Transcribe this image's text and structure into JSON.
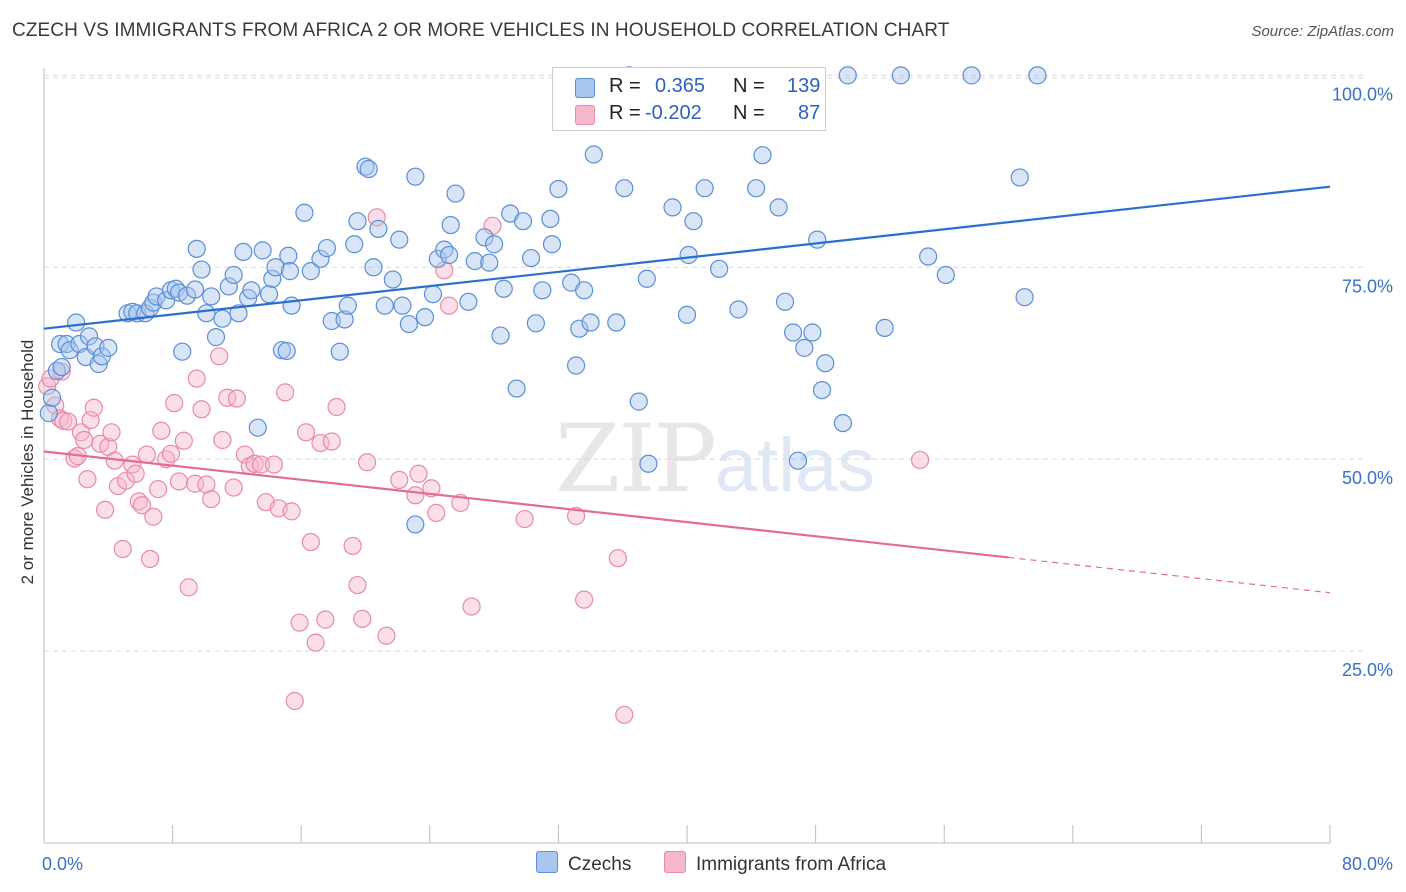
{
  "title": "CZECH VS IMMIGRANTS FROM AFRICA 2 OR MORE VEHICLES IN HOUSEHOLD CORRELATION CHART",
  "source": "Source: ZipAtlas.com",
  "watermark": {
    "zip": "ZIP",
    "atlas": "atlas"
  },
  "legend": {
    "rows": [
      {
        "r_label": "R =",
        "r_value": "0.365",
        "n_label": "N =",
        "n_value": "139"
      },
      {
        "r_label": "R =",
        "r_value": "-0.202",
        "n_label": "N =",
        "n_value": "87"
      }
    ]
  },
  "bottom_legend": [
    "Czechs",
    "Immigrants from Africa"
  ],
  "colors": {
    "blue_fill": "#a9c6ee",
    "blue_stroke": "#5b8ed6",
    "blue_line": "#2a6fd0",
    "pink_fill": "#f6b8cb",
    "pink_stroke": "#e88aa8",
    "pink_line": "#e36b96",
    "tick_label": "#3b6fc9",
    "grid": "#d9d9d9"
  },
  "chart_data": {
    "type": "scatter",
    "title": "CZECH VS IMMIGRANTS FROM AFRICA 2 OR MORE VEHICLES IN HOUSEHOLD CORRELATION CHART",
    "xlabel": "",
    "ylabel": "2 or more Vehicles in Household",
    "xlim": [
      0,
      80
    ],
    "ylim": [
      0,
      102
    ],
    "x_tick_labels": [
      "0.0%",
      "80.0%"
    ],
    "y_ticks": [
      25,
      50,
      75,
      100
    ],
    "y_tick_labels": [
      "25.0%",
      "50.0%",
      "75.0%",
      "100.0%"
    ],
    "grid": true,
    "legend_position": "top-center",
    "series": [
      {
        "name": "Czechs",
        "r": 0.365,
        "n": 139,
        "trend": {
          "x": [
            0,
            80
          ],
          "y": [
            67.0,
            85.5
          ],
          "dashed_from": null
        },
        "points": [
          [
            0.3,
            56.0
          ],
          [
            0.5,
            58.0
          ],
          [
            0.8,
            61.5
          ],
          [
            1.0,
            65.0
          ],
          [
            1.1,
            62.0
          ],
          [
            1.4,
            65.0
          ],
          [
            1.6,
            64.2
          ],
          [
            2.0,
            67.8
          ],
          [
            2.2,
            65.0
          ],
          [
            2.6,
            63.3
          ],
          [
            2.8,
            66.0
          ],
          [
            3.2,
            64.7
          ],
          [
            3.4,
            62.4
          ],
          [
            3.6,
            63.4
          ],
          [
            4.0,
            64.5
          ],
          [
            5.2,
            69.0
          ],
          [
            5.5,
            69.2
          ],
          [
            5.8,
            69.0
          ],
          [
            6.3,
            69.0
          ],
          [
            6.6,
            69.7
          ],
          [
            6.8,
            70.4
          ],
          [
            7.0,
            71.2
          ],
          [
            7.6,
            70.7
          ],
          [
            7.9,
            72.0
          ],
          [
            8.2,
            72.2
          ],
          [
            8.4,
            71.7
          ],
          [
            8.6,
            64.0
          ],
          [
            8.9,
            71.3
          ],
          [
            9.4,
            72.1
          ],
          [
            9.5,
            77.4
          ],
          [
            9.8,
            74.7
          ],
          [
            10.1,
            69.0
          ],
          [
            10.4,
            71.2
          ],
          [
            10.7,
            65.9
          ],
          [
            11.1,
            68.3
          ],
          [
            11.5,
            72.5
          ],
          [
            11.8,
            74.0
          ],
          [
            12.1,
            69.0
          ],
          [
            12.4,
            77.0
          ],
          [
            12.7,
            71.0
          ],
          [
            12.9,
            72.0
          ],
          [
            13.3,
            54.1
          ],
          [
            13.6,
            77.2
          ],
          [
            14.0,
            71.5
          ],
          [
            14.2,
            73.5
          ],
          [
            14.4,
            75.0
          ],
          [
            14.8,
            64.2
          ],
          [
            15.1,
            64.1
          ],
          [
            15.2,
            76.5
          ],
          [
            15.3,
            74.5
          ],
          [
            15.4,
            70.0
          ],
          [
            16.2,
            82.1
          ],
          [
            16.6,
            74.5
          ],
          [
            17.2,
            76.1
          ],
          [
            17.6,
            77.5
          ],
          [
            17.9,
            68.0
          ],
          [
            18.4,
            64.0
          ],
          [
            18.7,
            68.2
          ],
          [
            18.9,
            70.0
          ],
          [
            19.3,
            78.0
          ],
          [
            19.5,
            81.0
          ],
          [
            20.0,
            88.1
          ],
          [
            20.2,
            87.8
          ],
          [
            20.5,
            75.0
          ],
          [
            20.8,
            80.0
          ],
          [
            21.2,
            70.0
          ],
          [
            21.7,
            73.4
          ],
          [
            22.1,
            78.6
          ],
          [
            22.3,
            70.0
          ],
          [
            22.7,
            67.6
          ],
          [
            23.1,
            86.8
          ],
          [
            23.7,
            68.5
          ],
          [
            24.2,
            71.5
          ],
          [
            24.5,
            76.1
          ],
          [
            24.9,
            77.3
          ],
          [
            25.2,
            76.6
          ],
          [
            25.3,
            80.5
          ],
          [
            25.6,
            84.6
          ],
          [
            26.4,
            70.5
          ],
          [
            26.8,
            75.8
          ],
          [
            27.4,
            78.9
          ],
          [
            27.7,
            75.6
          ],
          [
            28.0,
            78.0
          ],
          [
            28.4,
            66.1
          ],
          [
            28.6,
            72.2
          ],
          [
            29.0,
            82.0
          ],
          [
            29.4,
            59.2
          ],
          [
            29.8,
            81.0
          ],
          [
            30.3,
            76.2
          ],
          [
            30.6,
            67.7
          ],
          [
            31.0,
            72.0
          ],
          [
            31.5,
            81.3
          ],
          [
            31.6,
            78.0
          ],
          [
            32.0,
            85.2
          ],
          [
            32.8,
            73.0
          ],
          [
            33.1,
            62.2
          ],
          [
            33.3,
            67.0
          ],
          [
            33.6,
            72.0
          ],
          [
            34.0,
            67.8
          ],
          [
            34.2,
            89.7
          ],
          [
            35.6,
            67.8
          ],
          [
            36.1,
            85.3
          ],
          [
            36.4,
            100.0
          ],
          [
            37.0,
            57.5
          ],
          [
            37.5,
            73.5
          ],
          [
            37.6,
            49.4
          ],
          [
            39.1,
            82.8
          ],
          [
            40.0,
            68.8
          ],
          [
            40.1,
            76.6
          ],
          [
            40.4,
            81.0
          ],
          [
            41.1,
            85.3
          ],
          [
            42.0,
            74.8
          ],
          [
            43.2,
            69.5
          ],
          [
            44.3,
            85.3
          ],
          [
            44.7,
            89.6
          ],
          [
            45.7,
            82.8
          ],
          [
            46.1,
            70.5
          ],
          [
            46.6,
            66.5
          ],
          [
            46.9,
            49.8
          ],
          [
            47.3,
            64.5
          ],
          [
            47.8,
            66.5
          ],
          [
            48.1,
            78.6
          ],
          [
            48.4,
            59.0
          ],
          [
            48.6,
            62.5
          ],
          [
            49.7,
            54.7
          ],
          [
            50.0,
            100.0
          ],
          [
            52.3,
            67.1
          ],
          [
            53.3,
            100.0
          ],
          [
            55.0,
            76.4
          ],
          [
            56.1,
            74.0
          ],
          [
            57.7,
            100.0
          ],
          [
            60.7,
            86.7
          ],
          [
            61.0,
            71.1
          ],
          [
            61.8,
            100.0
          ],
          [
            23.1,
            41.5
          ]
        ]
      },
      {
        "name": "Immigrants from Africa",
        "r": -0.202,
        "n": 87,
        "trend": {
          "x": [
            0,
            80
          ],
          "y": [
            51.0,
            32.6
          ],
          "dashed_from": 60
        },
        "points": [
          [
            0.2,
            59.5
          ],
          [
            0.4,
            60.5
          ],
          [
            0.7,
            57.0
          ],
          [
            1.0,
            55.3
          ],
          [
            1.2,
            55.0
          ],
          [
            1.5,
            54.9
          ],
          [
            1.9,
            50.1
          ],
          [
            2.1,
            50.4
          ],
          [
            2.3,
            53.5
          ],
          [
            2.5,
            52.5
          ],
          [
            2.7,
            47.4
          ],
          [
            2.9,
            55.1
          ],
          [
            3.1,
            56.7
          ],
          [
            3.5,
            52.0
          ],
          [
            3.8,
            43.4
          ],
          [
            4.0,
            51.6
          ],
          [
            4.2,
            53.5
          ],
          [
            4.4,
            49.8
          ],
          [
            4.6,
            46.5
          ],
          [
            4.9,
            38.3
          ],
          [
            5.1,
            47.2
          ],
          [
            5.5,
            49.3
          ],
          [
            5.7,
            48.1
          ],
          [
            5.9,
            44.5
          ],
          [
            6.1,
            44.0
          ],
          [
            6.4,
            50.6
          ],
          [
            6.6,
            37.0
          ],
          [
            6.8,
            42.5
          ],
          [
            7.1,
            46.1
          ],
          [
            7.3,
            53.7
          ],
          [
            7.6,
            50.0
          ],
          [
            7.9,
            50.7
          ],
          [
            8.1,
            57.3
          ],
          [
            8.4,
            47.1
          ],
          [
            8.7,
            52.4
          ],
          [
            9.0,
            33.3
          ],
          [
            9.4,
            46.8
          ],
          [
            9.5,
            60.5
          ],
          [
            9.8,
            56.5
          ],
          [
            10.1,
            46.7
          ],
          [
            10.4,
            44.8
          ],
          [
            10.9,
            63.4
          ],
          [
            11.1,
            52.5
          ],
          [
            11.4,
            58.0
          ],
          [
            11.8,
            46.3
          ],
          [
            12.0,
            57.9
          ],
          [
            12.5,
            50.6
          ],
          [
            12.8,
            49.1
          ],
          [
            13.1,
            49.4
          ],
          [
            13.5,
            49.3
          ],
          [
            13.8,
            44.4
          ],
          [
            14.3,
            49.3
          ],
          [
            14.6,
            43.6
          ],
          [
            15.0,
            58.7
          ],
          [
            15.4,
            43.2
          ],
          [
            15.9,
            28.7
          ],
          [
            16.3,
            53.5
          ],
          [
            16.6,
            39.2
          ],
          [
            16.9,
            26.1
          ],
          [
            17.2,
            52.1
          ],
          [
            17.5,
            29.1
          ],
          [
            17.9,
            52.3
          ],
          [
            18.2,
            56.8
          ],
          [
            19.2,
            38.7
          ],
          [
            19.5,
            33.6
          ],
          [
            19.8,
            29.2
          ],
          [
            20.1,
            49.6
          ],
          [
            20.7,
            81.5
          ],
          [
            21.3,
            27.0
          ],
          [
            22.1,
            47.3
          ],
          [
            23.1,
            45.3
          ],
          [
            23.3,
            48.1
          ],
          [
            24.1,
            46.2
          ],
          [
            24.4,
            43.0
          ],
          [
            24.9,
            74.6
          ],
          [
            25.2,
            70.0
          ],
          [
            25.9,
            44.3
          ],
          [
            26.6,
            30.8
          ],
          [
            27.9,
            80.4
          ],
          [
            29.9,
            42.2
          ],
          [
            33.1,
            42.6
          ],
          [
            33.6,
            31.7
          ],
          [
            35.7,
            37.1
          ],
          [
            36.1,
            16.7
          ],
          [
            54.5,
            49.9
          ],
          [
            15.6,
            18.5
          ],
          [
            1.1,
            61.4
          ]
        ]
      }
    ]
  }
}
